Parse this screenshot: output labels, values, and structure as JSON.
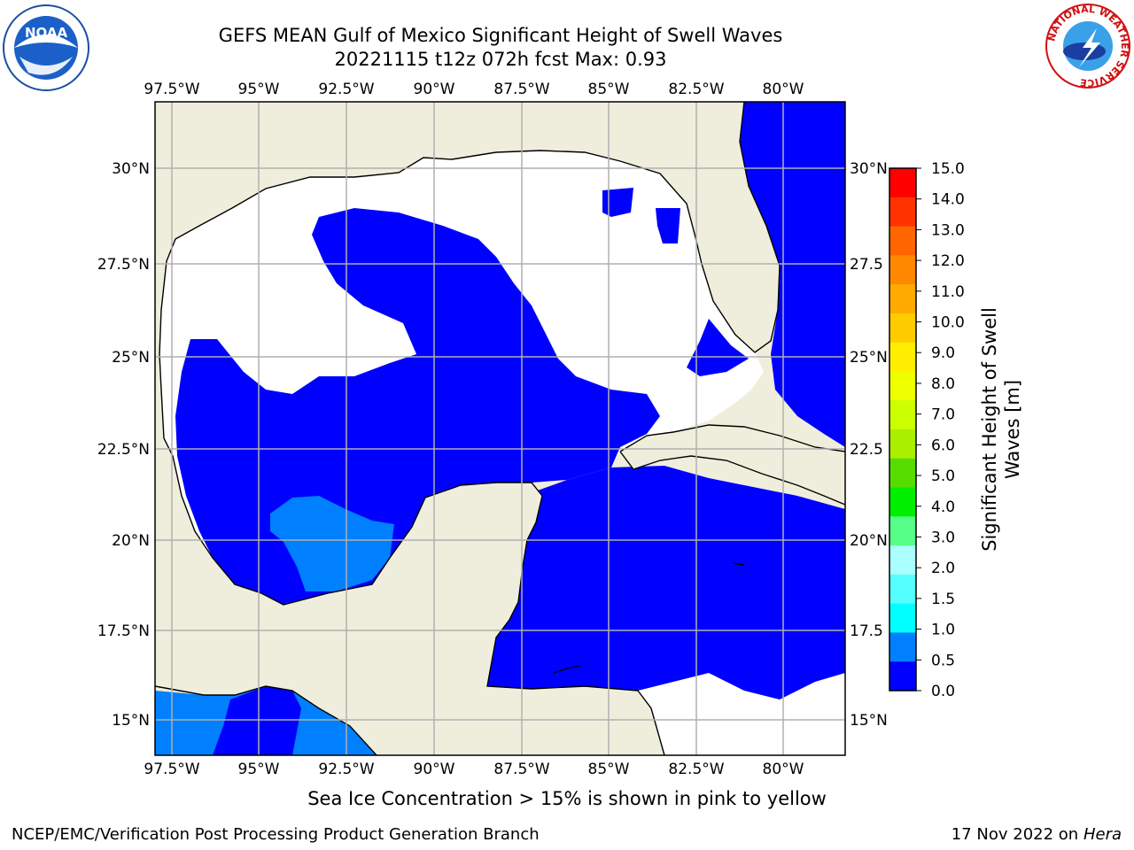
{
  "header": {
    "title": "GEFS MEAN Gulf of Mexico Significant Height of Swell Waves",
    "subtitle": "20221115 t12z 072h fcst   Max: 0.93"
  },
  "logos": {
    "left": "noaa-logo",
    "right": "national-weather-service-logo",
    "left_text": "NOAA",
    "right_ring_text": "NATIONAL WEATHER SERVICE"
  },
  "map": {
    "lon_labels": [
      "97.5°W",
      "95°W",
      "92.5°W",
      "90°W",
      "87.5°W",
      "85°W",
      "82.5°W",
      "80°W"
    ],
    "lat_labels_left": [
      "30°N",
      "27.5°N",
      "25°N",
      "22.5°N",
      "20°N",
      "17.5°N",
      "15°N"
    ],
    "lat_labels_right": [
      "30°N",
      "27.5",
      "25°N",
      "22.5",
      "20°N",
      "17.5",
      "15°N"
    ],
    "colors": {
      "land": "#efeedc",
      "ocean_low": "#0000ff",
      "ocean_mid": "#0080ff",
      "no_data": "#ffffff",
      "grid": "#b0b0b0"
    }
  },
  "colorbar": {
    "label_line1": "Significant Height of Swell",
    "label_line2": "Waves [m]",
    "ticks": [
      "15.0",
      "14.0",
      "13.0",
      "12.0",
      "11.0",
      "10.0",
      "9.0",
      "8.0",
      "7.0",
      "6.0",
      "5.0",
      "4.0",
      "3.0",
      "2.0",
      "1.5",
      "1.0",
      "0.5",
      "0.0"
    ],
    "colors": [
      "#ff0000",
      "#ff3300",
      "#ff6600",
      "#ff8800",
      "#ffaa00",
      "#ffcc00",
      "#ffee00",
      "#eeff00",
      "#ccff00",
      "#aaee00",
      "#55dd00",
      "#00ee00",
      "#55ff88",
      "#aaffff",
      "#55ffff",
      "#00ffff",
      "#0080ff",
      "#0000ff"
    ]
  },
  "footer": {
    "note": "Sea Ice Concentration > 15% is shown in pink to yellow",
    "credit": "NCEP/EMC/Verification Post Processing Product Generation Branch",
    "date": "17 Nov 2022 on",
    "host": "Hera"
  }
}
